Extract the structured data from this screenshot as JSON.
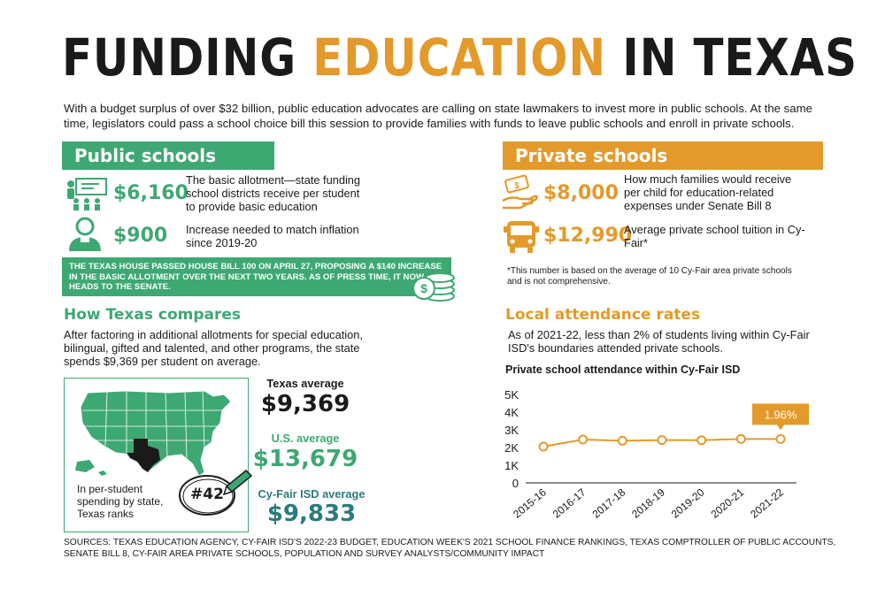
{
  "header": {
    "title_part1": "FUNDING",
    "title_part2": "EDUCATION",
    "title_part3": "IN TEXAS",
    "intro": "With a budget surplus of over $32 billion, public education advocates are calling on state lawmakers to invest more in public schools. At the same time, legislators could pass a school choice bill this session to provide families with funds to leave public schools and enroll in private schools."
  },
  "public": {
    "banner": "Public schools",
    "items": [
      {
        "icon": "classroom-icon",
        "amount": "$6,160",
        "desc": "The basic allotment—state funding school districts receive per student to provide basic education"
      },
      {
        "icon": "student-icon",
        "amount": "$900",
        "desc": "Increase needed to match inflation since 2019-20"
      }
    ],
    "note": "The Texas House passed House Bill 100 on April 27, proposing a $140 increase in the basic allotment over the next two years. As of press time, it now heads to the Senate."
  },
  "private": {
    "banner": "Private schools",
    "items": [
      {
        "icon": "money-hand-icon",
        "amount": "$8,000",
        "desc": "How much families would receive per child for education-related expenses under Senate Bill 8"
      },
      {
        "icon": "school-bus-icon",
        "amount": "$12,990",
        "desc": "Average private school tuition in Cy-Fair*"
      }
    ],
    "footnote": "*This number is based on the average of 10 Cy-Fair area private schools and is not comprehensive."
  },
  "compare": {
    "heading": "How Texas compares",
    "text": "After factoring in additional allotments for special education, bilingual, gifted and talented, and other programs, the state spends $9,369 per student on average.",
    "map_caption": "In per-student spending by state, Texas ranks",
    "rank": "#42",
    "stats": [
      {
        "label": "Texas average",
        "value": "$9,369"
      },
      {
        "label": "U.S. average",
        "value": "$13,679"
      },
      {
        "label": "Cy-Fair ISD average",
        "value": "$9,833"
      }
    ]
  },
  "attendance": {
    "heading": "Local attendance rates",
    "text": "As of 2021-22, less than 2% of students living within Cy-Fair ISD's boundaries attended private schools.",
    "chart_title": "Private school attendance within Cy-Fair ISD"
  },
  "chart_data": {
    "type": "line",
    "title": "Private school attendance within Cy-Fair ISD",
    "categories": [
      "2015-16",
      "2016-17",
      "2017-18",
      "2018-19",
      "2019-20",
      "2020-21",
      "2021-22"
    ],
    "values": [
      2050,
      2450,
      2380,
      2420,
      2410,
      2480,
      2480
    ],
    "y_tick_labels": [
      "0",
      "1K",
      "2K",
      "3K",
      "4K",
      "5K"
    ],
    "ylim": [
      0,
      5000
    ],
    "annotation": {
      "category": "2021-22",
      "text": "1.96%"
    },
    "color": "#e39a2a",
    "grid": false
  },
  "sources": "Sources: Texas Education Agency, Cy-Fair ISD's 2022-23 budget, Education Week's 2021 School Finance Rankings, Texas Comptroller of Public Accounts, Senate Bill 8, Cy-Fair area private schools, Population and Survey Analysts/Community Impact",
  "colors": {
    "green": "#3ea873",
    "orange": "#e39a2a",
    "teal": "#2b7a7e",
    "dark": "#1a1a1a"
  }
}
